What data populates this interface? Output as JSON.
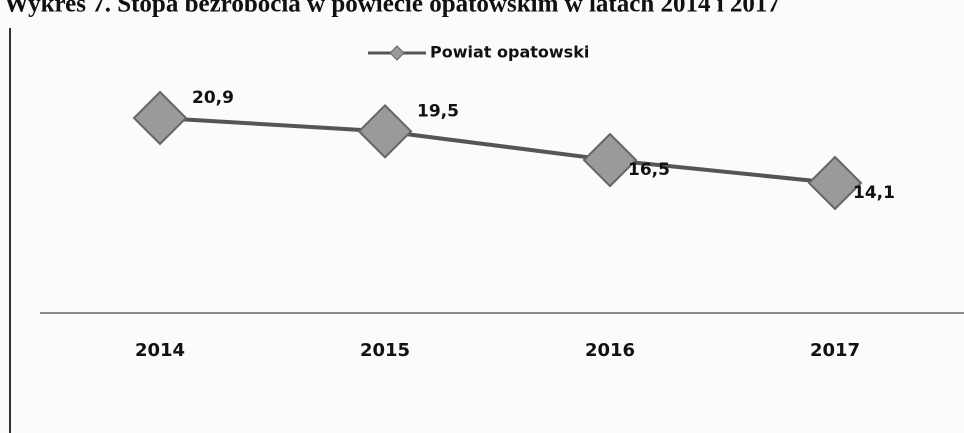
{
  "chart_data": {
    "type": "line",
    "title": "Wykres 7. Stopa bezrobocia w powiecie opatowskim w latach 2014 i 2017",
    "categories": [
      "2014",
      "2015",
      "2016",
      "2017"
    ],
    "series": [
      {
        "name": "Powiat opatowski",
        "color": "#555555",
        "values": [
          20.9,
          19.5,
          16.5,
          14.1
        ],
        "value_labels": [
          "20,9",
          "19,5",
          "16,5",
          "14,1"
        ]
      }
    ]
  }
}
